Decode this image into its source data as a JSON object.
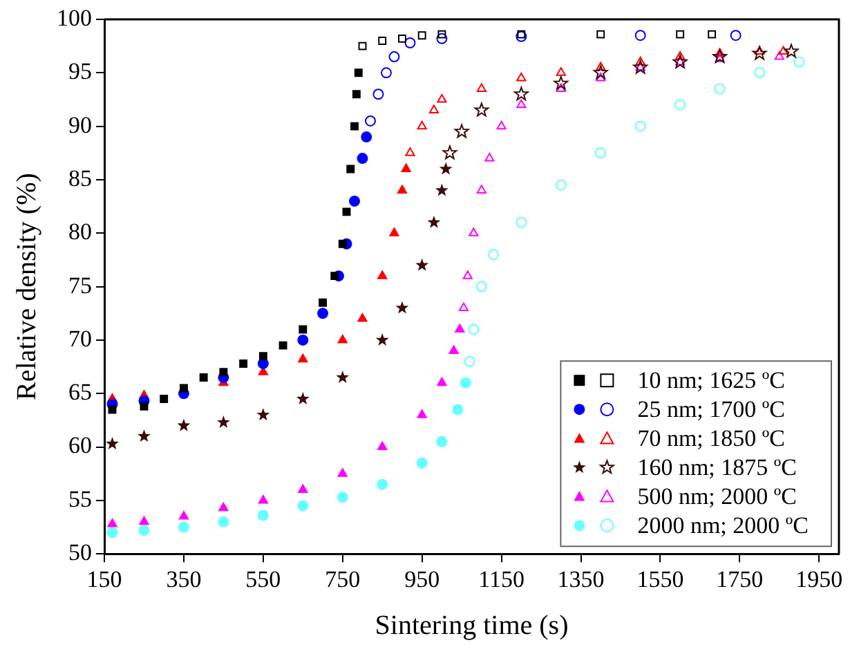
{
  "chart_data": {
    "type": "scatter",
    "xlabel": "Sintering time (s)",
    "ylabel": "Relative density (%)",
    "xlim": [
      150,
      2000
    ],
    "xticks": [
      150,
      350,
      550,
      750,
      950,
      1150,
      1350,
      1550,
      1750,
      1950
    ],
    "ylim": [
      50,
      100
    ],
    "yticks": [
      50,
      55,
      60,
      65,
      70,
      75,
      80,
      85,
      90,
      95,
      100
    ],
    "grid": false,
    "legend": "bottom right",
    "series": [
      {
        "name": "10 nm; 1625 ºC",
        "color": "#000000",
        "marker": "square",
        "x": [
          170,
          250,
          300,
          350,
          400,
          450,
          500,
          550,
          600,
          650,
          700,
          730,
          750,
          760,
          770,
          780,
          785,
          790
        ],
        "values": [
          63.5,
          63.8,
          64.5,
          65.5,
          66.5,
          67,
          67.8,
          68.5,
          69.5,
          71,
          73.5,
          76,
          79,
          82,
          86,
          90,
          93,
          95
        ]
      },
      {
        "color": "#000000",
        "marker": "square",
        "x": [
          800,
          850,
          900,
          950,
          1000,
          1200,
          1400,
          1600,
          1680
        ],
        "values": [
          97.5,
          98,
          98.2,
          98.5,
          98.6,
          98.6,
          98.6,
          98.6,
          98.6
        ]
      },
      {
        "name": "25 nm; 1700 ºC",
        "color": "#0000ff",
        "marker": "circle",
        "x": [
          170,
          250,
          350,
          450,
          550,
          650,
          700,
          740,
          760,
          780,
          800,
          810
        ],
        "values": [
          64,
          64.3,
          65,
          66.5,
          67.8,
          70,
          72.5,
          76,
          79,
          83,
          87,
          89
        ]
      },
      {
        "color": "#0000ff",
        "marker": "circle",
        "x": [
          820,
          840,
          860,
          880,
          920,
          1000,
          1200,
          1500,
          1740
        ],
        "values": [
          90.5,
          93,
          95,
          96.5,
          97.8,
          98.2,
          98.4,
          98.5,
          98.5
        ]
      },
      {
        "name": "70 nm; 1850 ºC",
        "color": "#ff0000",
        "marker": "triangle",
        "x": [
          170,
          250,
          450,
          550,
          650,
          750,
          800,
          850,
          880,
          900,
          910
        ],
        "values": [
          64.5,
          64.8,
          66,
          67,
          68.2,
          70,
          72,
          76,
          80,
          84,
          86
        ]
      },
      {
        "color": "#ff0000",
        "marker": "triangle",
        "x": [
          920,
          950,
          980,
          1000,
          1100,
          1200,
          1300,
          1400,
          1500,
          1600,
          1700,
          1800,
          1860
        ],
        "values": [
          87.5,
          90,
          91.5,
          92.5,
          93.5,
          94.5,
          95,
          95.5,
          96,
          96.5,
          96.8,
          97,
          97
        ]
      },
      {
        "name": "160 nm; 1875 ºC",
        "color": "#3d0a0a",
        "marker": "star",
        "x": [
          170,
          250,
          350,
          450,
          550,
          650,
          750,
          850,
          900,
          950,
          980,
          1000,
          1010
        ],
        "values": [
          60.3,
          61,
          62,
          62.3,
          63,
          64.5,
          66.5,
          70,
          73,
          77,
          81,
          84,
          86
        ]
      },
      {
        "color": "#3d0a0a",
        "marker": "star",
        "x": [
          1020,
          1050,
          1100,
          1200,
          1300,
          1400,
          1500,
          1600,
          1700,
          1800,
          1880
        ],
        "values": [
          87.5,
          89.5,
          91.5,
          93,
          94,
          95,
          95.5,
          96,
          96.5,
          96.8,
          97
        ]
      },
      {
        "name": "500 nm; 2000 ºC",
        "color": "#ff00ff",
        "marker": "triangle",
        "x": [
          170,
          250,
          350,
          450,
          550,
          650,
          750,
          850,
          950,
          1000,
          1030,
          1045
        ],
        "values": [
          52.8,
          53,
          53.5,
          54.3,
          55,
          56,
          57.5,
          60,
          63,
          66,
          69,
          71
        ]
      },
      {
        "color": "#ff00ff",
        "marker": "triangle",
        "x": [
          1055,
          1065,
          1080,
          1100,
          1120,
          1150,
          1200,
          1300,
          1400,
          1500,
          1600,
          1700,
          1850
        ],
        "values": [
          73,
          76,
          80,
          84,
          87,
          90,
          92,
          93.5,
          94.5,
          95.5,
          96,
          96.3,
          96.5
        ]
      },
      {
        "name": "2000 nm; 2000 ºC",
        "color": "#66ffff",
        "marker": "circle",
        "x": [
          170,
          250,
          350,
          450,
          550,
          650,
          750,
          850,
          950,
          1000,
          1040,
          1060
        ],
        "values": [
          52,
          52.2,
          52.5,
          53,
          53.6,
          54.5,
          55.3,
          56.5,
          58.5,
          60.5,
          63.5,
          66
        ]
      },
      {
        "color": "#66ffff",
        "marker": "circle",
        "x": [
          1070,
          1080,
          1100,
          1130,
          1200,
          1300,
          1400,
          1500,
          1600,
          1700,
          1800,
          1900
        ],
        "values": [
          68,
          71,
          75,
          78,
          81,
          84.5,
          87.5,
          90,
          92,
          93.5,
          95,
          96
        ]
      }
    ]
  }
}
